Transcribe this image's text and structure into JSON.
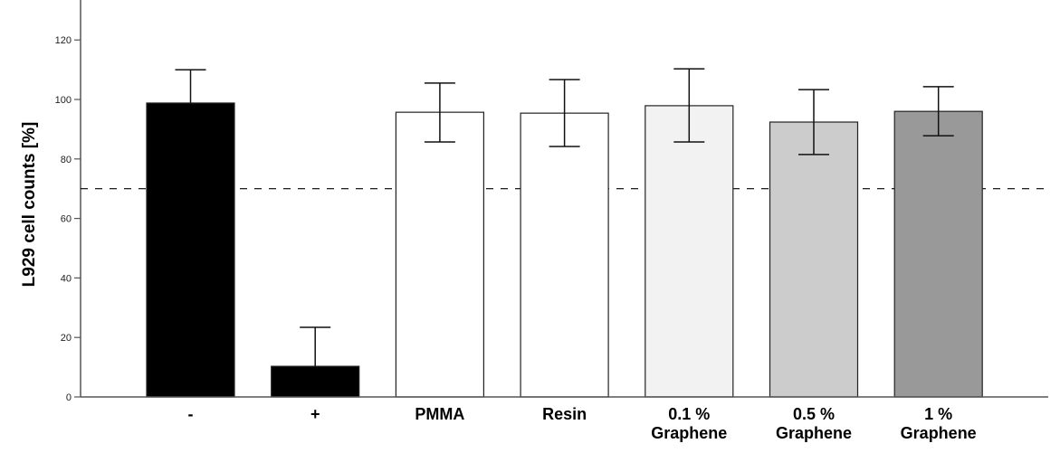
{
  "chart_data": {
    "type": "bar",
    "title": "",
    "xlabel": "",
    "ylabel": "L929 cell counts [%]",
    "ylim": [
      0,
      130
    ],
    "yticks": [
      0,
      20,
      40,
      60,
      80,
      100,
      120
    ],
    "grid": false,
    "legend": null,
    "categories": [
      "-",
      "+",
      "PMMA",
      "Resin",
      "0.1 % Graphene",
      "0.5 % Graphene",
      "1 % Graphene"
    ],
    "category_lines": [
      [
        "-"
      ],
      [
        "+"
      ],
      [
        "PMMA"
      ],
      [
        "Resin"
      ],
      [
        "0.1 %",
        "Graphene"
      ],
      [
        "0.5 %",
        "Graphene"
      ],
      [
        "1 %",
        "Graphene"
      ]
    ],
    "values": [
      98.8,
      10.3,
      95.7,
      95.4,
      97.9,
      92.4,
      96.0
    ],
    "error_upper": [
      110.0,
      23.4,
      105.5,
      106.7,
      110.3,
      103.3,
      104.3
    ],
    "error_lower": [
      null,
      null,
      85.7,
      84.2,
      85.7,
      81.5,
      87.8
    ],
    "bar_colors": [
      "#000000",
      "#000000",
      "#ffffff",
      "#ffffff",
      "#f2f2f2",
      "#cccccc",
      "#999999"
    ],
    "reference_line": {
      "y": 70,
      "style": "dashed",
      "color": "#000000"
    }
  }
}
